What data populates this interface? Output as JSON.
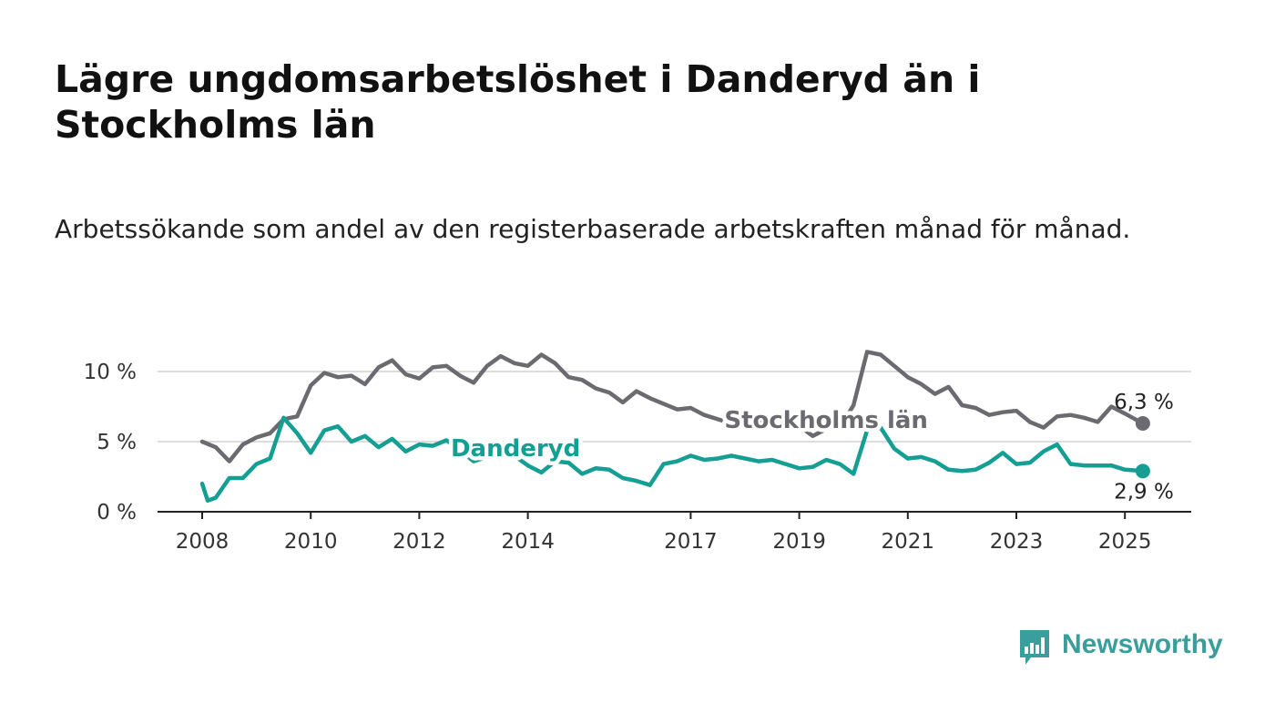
{
  "title": "Lägre ungdomsarbetslöshet i Danderyd än i Stockholms län",
  "subtitle": "Arbetssökande som andel av den registerbaserade arbetskraften månad för månad.",
  "logo": {
    "text": "Newsworthy",
    "color": "#3a9e9c"
  },
  "chart_data": {
    "type": "line",
    "title": "Lägre ungdomsarbetslöshet i Danderyd än i Stockholms län",
    "subtitle": "Arbetssökande som andel av den registerbaserade arbetskraften månad för månad.",
    "xlabel": "",
    "ylabel": "",
    "ylim": [
      0,
      12
    ],
    "y_ticks": [
      0,
      5,
      10
    ],
    "y_tick_labels": [
      "0 %",
      "5 %",
      "10 %"
    ],
    "x_ticks": [
      2008,
      2010,
      2012,
      2014,
      2017,
      2019,
      2021,
      2023,
      2025
    ],
    "x_tick_labels": [
      "2008",
      "2010",
      "2012",
      "2014",
      "2017",
      "2019",
      "2021",
      "2023",
      "2025"
    ],
    "xlim": [
      2007.15,
      2026.2
    ],
    "grid": "horizontal",
    "legend": "inline labels",
    "series": [
      {
        "name": "Stockholms län",
        "color": "#6b6a70",
        "end_label": "6,3 %",
        "x": [
          2008.0,
          2008.25,
          2008.5,
          2008.75,
          2009.0,
          2009.25,
          2009.5,
          2009.75,
          2010.0,
          2010.25,
          2010.5,
          2010.75,
          2011.0,
          2011.25,
          2011.5,
          2011.75,
          2012.0,
          2012.25,
          2012.5,
          2012.75,
          2013.0,
          2013.25,
          2013.5,
          2013.75,
          2014.0,
          2014.25,
          2014.5,
          2014.75,
          2015.0,
          2015.25,
          2015.5,
          2015.75,
          2016.0,
          2016.25,
          2016.5,
          2016.75,
          2017.0,
          2017.25,
          2017.5,
          2017.75,
          2018.0,
          2018.25,
          2018.5,
          2018.75,
          2019.0,
          2019.25,
          2019.5,
          2019.75,
          2020.0,
          2020.25,
          2020.5,
          2020.75,
          2021.0,
          2021.25,
          2021.5,
          2021.75,
          2022.0,
          2022.25,
          2022.5,
          2022.75,
          2023.0,
          2023.25,
          2023.5,
          2023.75,
          2024.0,
          2024.25,
          2024.5,
          2024.75,
          2025.0,
          2025.33
        ],
        "values": [
          5.0,
          4.6,
          3.6,
          4.8,
          5.3,
          5.6,
          6.6,
          6.8,
          9.0,
          9.9,
          9.6,
          9.7,
          9.1,
          10.3,
          10.8,
          9.8,
          9.5,
          10.3,
          10.4,
          9.7,
          9.2,
          10.4,
          11.1,
          10.6,
          10.4,
          11.2,
          10.6,
          9.6,
          9.4,
          8.8,
          8.5,
          7.8,
          8.6,
          8.1,
          7.7,
          7.3,
          7.4,
          6.9,
          6.6,
          6.3,
          6.9,
          6.4,
          6.1,
          5.9,
          6.1,
          5.4,
          5.9,
          6.0,
          7.6,
          11.4,
          11.2,
          10.4,
          9.6,
          9.1,
          8.4,
          8.9,
          7.6,
          7.4,
          6.9,
          7.1,
          7.2,
          6.4,
          6.0,
          6.8,
          6.9,
          6.7,
          6.4,
          7.5,
          7.0,
          6.3
        ]
      },
      {
        "name": "Danderyd",
        "color": "#159e94",
        "end_label": "2,9 %",
        "x": [
          2008.0,
          2008.1,
          2008.25,
          2008.5,
          2008.75,
          2009.0,
          2009.25,
          2009.5,
          2009.75,
          2010.0,
          2010.25,
          2010.5,
          2010.75,
          2011.0,
          2011.25,
          2011.5,
          2011.75,
          2012.0,
          2012.25,
          2012.5,
          2012.75,
          2013.0,
          2013.25,
          2013.5,
          2013.75,
          2014.0,
          2014.25,
          2014.5,
          2014.75,
          2015.0,
          2015.25,
          2015.5,
          2015.75,
          2016.0,
          2016.25,
          2016.5,
          2016.75,
          2017.0,
          2017.25,
          2017.5,
          2017.75,
          2018.0,
          2018.25,
          2018.5,
          2018.75,
          2019.0,
          2019.25,
          2019.5,
          2019.75,
          2020.0,
          2020.25,
          2020.5,
          2020.75,
          2021.0,
          2021.25,
          2021.5,
          2021.75,
          2022.0,
          2022.25,
          2022.5,
          2022.75,
          2023.0,
          2023.25,
          2023.5,
          2023.75,
          2024.0,
          2024.25,
          2024.5,
          2024.75,
          2025.0,
          2025.33
        ],
        "values": [
          2.0,
          0.8,
          1.0,
          2.4,
          2.4,
          3.4,
          3.8,
          6.7,
          5.6,
          4.2,
          5.8,
          6.1,
          5.0,
          5.4,
          4.6,
          5.2,
          4.3,
          4.8,
          4.7,
          5.1,
          4.4,
          3.6,
          3.9,
          4.3,
          4.0,
          3.3,
          2.8,
          3.6,
          3.5,
          2.7,
          3.1,
          3.0,
          2.4,
          2.2,
          1.9,
          3.4,
          3.6,
          4.0,
          3.7,
          3.8,
          4.0,
          3.8,
          3.6,
          3.7,
          3.4,
          3.1,
          3.2,
          3.7,
          3.4,
          2.7,
          5.8,
          6.0,
          4.5,
          3.8,
          3.9,
          3.6,
          3.0,
          2.9,
          3.0,
          3.5,
          4.2,
          3.4,
          3.5,
          4.3,
          4.8,
          3.4,
          3.3,
          3.3,
          3.3,
          3.0,
          2.9
        ]
      }
    ]
  }
}
